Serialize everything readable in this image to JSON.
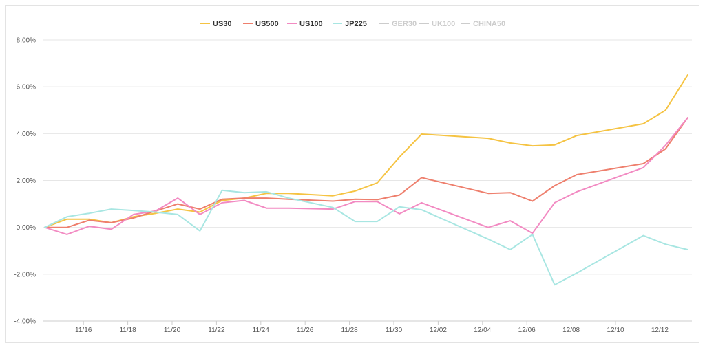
{
  "chart_data": {
    "type": "line",
    "title": "",
    "xlabel": "",
    "ylabel": "",
    "ylim": [
      -4,
      8
    ],
    "y_ticks": [
      "8.00%",
      "6.00%",
      "4.00%",
      "2.00%",
      "0.00%",
      "-2.00%",
      "-4.00%"
    ],
    "y_tick_values": [
      8,
      6,
      4,
      2,
      0,
      -2,
      -4
    ],
    "x_tick_labels": [
      "11/16",
      "11/18",
      "11/20",
      "11/22",
      "11/24",
      "11/26",
      "11/28",
      "11/30",
      "12/02",
      "12/04",
      "12/06",
      "12/08",
      "12/10",
      "12/12"
    ],
    "x_tick_days": [
      1,
      3,
      5,
      7,
      9,
      11,
      13,
      15,
      17,
      19,
      21,
      23,
      25,
      27
    ],
    "x_days": [
      0,
      1,
      2,
      3,
      4,
      5,
      6,
      7,
      8,
      9,
      10,
      11,
      13,
      14,
      15,
      16,
      17,
      20,
      21,
      22,
      23,
      24,
      27,
      28,
      29
    ],
    "grid": true,
    "legend_position": "top-center",
    "series": [
      {
        "name": "US30",
        "color": "#f5c342",
        "visible": true,
        "values": [
          0.0,
          0.35,
          0.35,
          0.2,
          0.45,
          0.6,
          0.78,
          0.65,
          1.15,
          1.25,
          1.45,
          1.45,
          1.35,
          1.55,
          1.9,
          3.0,
          3.98,
          3.8,
          3.6,
          3.48,
          3.52,
          3.92,
          4.42,
          5.0,
          6.5
        ]
      },
      {
        "name": "US500",
        "color": "#ee7f6d",
        "visible": true,
        "values": [
          0.0,
          0.0,
          0.3,
          0.2,
          0.4,
          0.7,
          1.0,
          0.78,
          1.2,
          1.25,
          1.25,
          1.2,
          1.12,
          1.2,
          1.18,
          1.38,
          2.12,
          1.45,
          1.48,
          1.12,
          1.78,
          2.25,
          2.72,
          3.35,
          4.68
        ]
      },
      {
        "name": "US100",
        "color": "#f28ac2",
        "visible": true,
        "values": [
          0.0,
          -0.3,
          0.05,
          -0.08,
          0.55,
          0.7,
          1.25,
          0.55,
          1.05,
          1.15,
          0.82,
          0.82,
          0.78,
          1.1,
          1.1,
          0.58,
          1.05,
          0.0,
          0.28,
          -0.25,
          1.05,
          1.52,
          2.55,
          3.5,
          4.68
        ]
      },
      {
        "name": "JP225",
        "color": "#a8e6e2",
        "visible": true,
        "values": [
          0.0,
          0.45,
          0.6,
          0.78,
          0.72,
          0.65,
          0.55,
          -0.15,
          1.58,
          1.48,
          1.52,
          1.25,
          0.85,
          0.25,
          0.25,
          0.88,
          0.75,
          -0.5,
          -0.95,
          -0.3,
          -2.45,
          -1.95,
          -0.35,
          -0.72,
          -0.95
        ]
      },
      {
        "name": "GER30",
        "color": "#cccccc",
        "visible": false,
        "values": []
      },
      {
        "name": "UK100",
        "color": "#cccccc",
        "visible": false,
        "values": []
      },
      {
        "name": "CHINA50",
        "color": "#cccccc",
        "visible": false,
        "values": []
      }
    ]
  }
}
